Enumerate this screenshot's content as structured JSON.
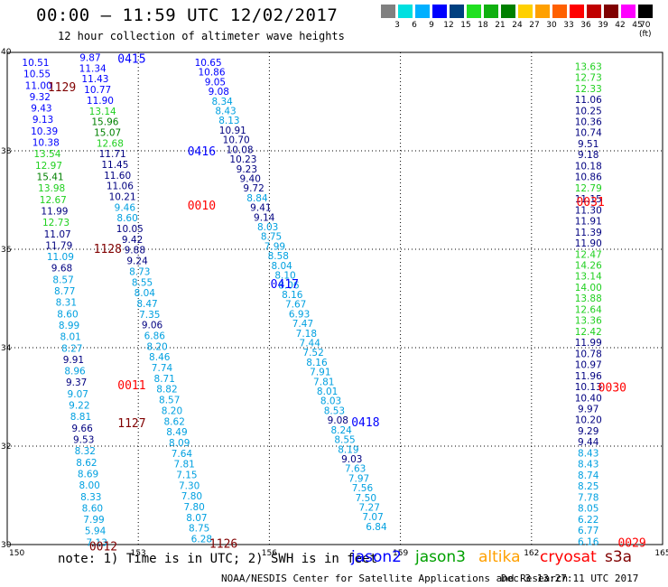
{
  "header": {
    "title": "00:00 – 11:59 UTC 12/02/2017",
    "subtitle": "12 hour collection of altimeter wave heights"
  },
  "scale": {
    "labels": [
      "3",
      "6",
      "9",
      "12",
      "15",
      "18",
      "21",
      "24",
      "27",
      "30",
      "33",
      "36",
      "39",
      "42",
      "45",
      "70 (ft)"
    ],
    "colors": [
      "#808080",
      "#00e0e0",
      "#00b0ff",
      "#0000ff",
      "#004080",
      "#20e020",
      "#10b010",
      "#008000",
      "#ffd000",
      "#ffa000",
      "#ff6000",
      "#ff0000",
      "#c00000",
      "#800000",
      "#ff00ff",
      "#000000"
    ]
  },
  "footer": {
    "note": "note: 1) Time is in UTC; 2) SWH is in feet",
    "satellites": [
      {
        "name": "jason2",
        "color": "#0000ff"
      },
      {
        "name": "jason3",
        "color": "#00a000"
      },
      {
        "name": "altika",
        "color": "#ffa000"
      },
      {
        "name": "cryosat",
        "color": "#ff0000"
      },
      {
        "name": "s3a",
        "color": "#800000"
      }
    ],
    "credit": "NOAA/NESDIS Center for Satellite Applications and Research",
    "stamp": "Dec  3 13:27:11 UTC 2017"
  },
  "chart_data": {
    "type": "scatter",
    "title": "12 hour collection of altimeter wave heights",
    "xlim": [
      150,
      165
    ],
    "ylim": [
      30,
      40
    ],
    "x_ticks": [
      "150",
      "153",
      "156",
      "159",
      "162",
      "165"
    ],
    "y_ticks": [
      "30",
      "32",
      "34",
      "36",
      "38",
      "40"
    ],
    "grid": true,
    "color_key": {
      "jason2": "#0000ff",
      "jason3": "#00a000",
      "altika": "#ffa000",
      "cryosat": "#ff0000",
      "s3a": "#800000"
    },
    "shade_colors": [
      "#00a0e0",
      "#20d020",
      "#008000",
      "#000080",
      "#0000ff"
    ],
    "time_labels": [
      {
        "text": "0415",
        "x": 152.85,
        "y": 39.88,
        "color": "#0000ff"
      },
      {
        "text": "1129",
        "x": 151.25,
        "y": 39.3,
        "color": "#800000"
      },
      {
        "text": "0416",
        "x": 154.45,
        "y": 38.0,
        "color": "#0000ff"
      },
      {
        "text": "0010",
        "x": 154.45,
        "y": 36.9,
        "color": "#ff0000"
      },
      {
        "text": "0031",
        "x": 163.35,
        "y": 36.97,
        "color": "#ff0000"
      },
      {
        "text": "1128",
        "x": 152.3,
        "y": 36.02,
        "color": "#800000"
      },
      {
        "text": "0417",
        "x": 156.35,
        "y": 35.3,
        "color": "#0000ff"
      },
      {
        "text": "0011",
        "x": 152.85,
        "y": 33.25,
        "color": "#ff0000"
      },
      {
        "text": "0030",
        "x": 163.85,
        "y": 33.2,
        "color": "#ff0000"
      },
      {
        "text": "1127",
        "x": 152.85,
        "y": 32.48,
        "color": "#800000"
      },
      {
        "text": "0418",
        "x": 158.2,
        "y": 32.5,
        "color": "#0000ff"
      },
      {
        "text": "0012",
        "x": 152.2,
        "y": 29.97,
        "color": "#800000"
      },
      {
        "text": "1126",
        "x": 154.95,
        "y": 30.03,
        "color": "#800000"
      },
      {
        "text": "0029",
        "x": 164.3,
        "y": 30.05,
        "color": "#ff0000"
      }
    ],
    "tracks": [
      {
        "x0": 150.65,
        "y0": 39.78,
        "x1": 152.05,
        "y1": 30.03,
        "values": [
          {
            "v": "10.51",
            "s": 4
          },
          {
            "v": "10.55",
            "s": 4
          },
          {
            "v": "11.00",
            "s": 4
          },
          {
            "v": "9.32",
            "s": 4
          },
          {
            "v": "9.43",
            "s": 4
          },
          {
            "v": "9.13",
            "s": 4
          },
          {
            "v": "10.39",
            "s": 4
          },
          {
            "v": "10.38",
            "s": 4
          },
          {
            "v": "13.54",
            "s": 1
          },
          {
            "v": "12.97",
            "s": 1
          },
          {
            "v": "15.41",
            "s": 2
          },
          {
            "v": "13.98",
            "s": 1
          },
          {
            "v": "12.67",
            "s": 1
          },
          {
            "v": "11.99",
            "s": 3
          },
          {
            "v": "12.73",
            "s": 1
          },
          {
            "v": "11.07",
            "s": 3
          },
          {
            "v": "11.79",
            "s": 3
          },
          {
            "v": "11.09",
            "s": 0
          },
          {
            "v": "9.68",
            "s": 3
          },
          {
            "v": "8.57",
            "s": 0
          },
          {
            "v": "8.77",
            "s": 0
          },
          {
            "v": "8.31",
            "s": 0
          },
          {
            "v": "8.60",
            "s": 0
          },
          {
            "v": "8.99",
            "s": 0
          },
          {
            "v": "8.01",
            "s": 0
          },
          {
            "v": "8.27",
            "s": 0
          },
          {
            "v": "9.91",
            "s": 3
          },
          {
            "v": "8.96",
            "s": 0
          },
          {
            "v": "9.37",
            "s": 3
          },
          {
            "v": "9.07",
            "s": 0
          },
          {
            "v": "9.22",
            "s": 0
          },
          {
            "v": "8.81",
            "s": 0
          },
          {
            "v": "9.66",
            "s": 3
          },
          {
            "v": "9.53",
            "s": 3
          },
          {
            "v": "8.32",
            "s": 0
          },
          {
            "v": "8.62",
            "s": 0
          },
          {
            "v": "8.69",
            "s": 0
          },
          {
            "v": "8.00",
            "s": 0
          },
          {
            "v": "8.33",
            "s": 0
          },
          {
            "v": "8.60",
            "s": 0
          },
          {
            "v": "7.99",
            "s": 0
          },
          {
            "v": "5.94",
            "s": 0
          },
          {
            "v": "7.13",
            "s": 0
          }
        ]
      },
      {
        "x0": 151.9,
        "y0": 39.88,
        "x1": 154.45,
        "y1": 30.1,
        "values": [
          {
            "v": "9.87",
            "s": 4
          },
          {
            "v": "11.34",
            "s": 4
          },
          {
            "v": "11.43",
            "s": 4
          },
          {
            "v": "10.77",
            "s": 4
          },
          {
            "v": "11.90",
            "s": 4
          },
          {
            "v": "13.14",
            "s": 1
          },
          {
            "v": "15.96",
            "s": 2
          },
          {
            "v": "15.07",
            "s": 2
          },
          {
            "v": "12.68",
            "s": 1
          },
          {
            "v": "11.71",
            "s": 3
          },
          {
            "v": "11.45",
            "s": 3
          },
          {
            "v": "11.60",
            "s": 3
          },
          {
            "v": "11.06",
            "s": 3
          },
          {
            "v": "10.21",
            "s": 3
          },
          {
            "v": "9.46",
            "s": 0
          },
          {
            "v": "8.60",
            "s": 0
          },
          {
            "v": "10.05",
            "s": 3
          },
          {
            "v": "9.42",
            "s": 3
          },
          {
            "v": "9.88",
            "s": 3
          },
          {
            "v": "9.24",
            "s": 3
          },
          {
            "v": "8.73",
            "s": 0
          },
          {
            "v": "8.55",
            "s": 0
          },
          {
            "v": "8.04",
            "s": 0
          },
          {
            "v": "8.47",
            "s": 0
          },
          {
            "v": "7.35",
            "s": 0
          },
          {
            "v": "9.06",
            "s": 3
          },
          {
            "v": "6.86",
            "s": 0
          },
          {
            "v": "8.20",
            "s": 0
          },
          {
            "v": "8.46",
            "s": 0
          },
          {
            "v": "7.74",
            "s": 0
          },
          {
            "v": "8.71",
            "s": 0
          },
          {
            "v": "8.82",
            "s": 0
          },
          {
            "v": "8.57",
            "s": 0
          },
          {
            "v": "8.20",
            "s": 0
          },
          {
            "v": "8.62",
            "s": 0
          },
          {
            "v": "8.49",
            "s": 0
          },
          {
            "v": "8.09",
            "s": 0
          },
          {
            "v": "7.64",
            "s": 0
          },
          {
            "v": "7.81",
            "s": 0
          },
          {
            "v": "7.15",
            "s": 0
          },
          {
            "v": "7.30",
            "s": 0
          },
          {
            "v": "7.80",
            "s": 0
          },
          {
            "v": "7.80",
            "s": 0
          },
          {
            "v": "8.07",
            "s": 0
          },
          {
            "v": "8.75",
            "s": 0
          },
          {
            "v": "6.28",
            "s": 0
          }
        ]
      },
      {
        "x0": 154.6,
        "y0": 39.78,
        "x1": 158.45,
        "y1": 30.35,
        "values": [
          {
            "v": "10.65",
            "s": 4
          },
          {
            "v": "10.86",
            "s": 4
          },
          {
            "v": "9.05",
            "s": 4
          },
          {
            "v": "9.08",
            "s": 4
          },
          {
            "v": "8.34",
            "s": 0
          },
          {
            "v": "8.43",
            "s": 0
          },
          {
            "v": "8.13",
            "s": 0
          },
          {
            "v": "10.91",
            "s": 3
          },
          {
            "v": "10.70",
            "s": 3
          },
          {
            "v": "10.08",
            "s": 3
          },
          {
            "v": "10.23",
            "s": 3
          },
          {
            "v": "9.23",
            "s": 3
          },
          {
            "v": "9.40",
            "s": 3
          },
          {
            "v": "9.72",
            "s": 3
          },
          {
            "v": "8.84",
            "s": 0
          },
          {
            "v": "9.41",
            "s": 3
          },
          {
            "v": "9.14",
            "s": 3
          },
          {
            "v": "8.03",
            "s": 0
          },
          {
            "v": "8.75",
            "s": 0
          },
          {
            "v": "7.99",
            "s": 0
          },
          {
            "v": "8.58",
            "s": 0
          },
          {
            "v": "8.04",
            "s": 0
          },
          {
            "v": "8.10",
            "s": 0
          },
          {
            "v": "8.06",
            "s": 0
          },
          {
            "v": "8.16",
            "s": 0
          },
          {
            "v": "7.67",
            "s": 0
          },
          {
            "v": "6.93",
            "s": 0
          },
          {
            "v": "7.47",
            "s": 0
          },
          {
            "v": "7.18",
            "s": 0
          },
          {
            "v": "7.44",
            "s": 0
          },
          {
            "v": "7.52",
            "s": 0
          },
          {
            "v": "8.16",
            "s": 0
          },
          {
            "v": "7.91",
            "s": 0
          },
          {
            "v": "7.81",
            "s": 0
          },
          {
            "v": "8.01",
            "s": 0
          },
          {
            "v": "8.03",
            "s": 0
          },
          {
            "v": "8.53",
            "s": 0
          },
          {
            "v": "9.08",
            "s": 3
          },
          {
            "v": "8.24",
            "s": 0
          },
          {
            "v": "8.55",
            "s": 0
          },
          {
            "v": "8.19",
            "s": 0
          },
          {
            "v": "9.03",
            "s": 3
          },
          {
            "v": "7.63",
            "s": 0
          },
          {
            "v": "7.97",
            "s": 0
          },
          {
            "v": "7.56",
            "s": 0
          },
          {
            "v": "7.50",
            "s": 0
          },
          {
            "v": "7.27",
            "s": 0
          },
          {
            "v": "7.07",
            "s": 0
          },
          {
            "v": "6.84",
            "s": 0
          }
        ]
      },
      {
        "x0": 163.3,
        "y0": 39.7,
        "x1": 163.3,
        "y1": 30.05,
        "values": [
          {
            "v": "13.63",
            "s": 1
          },
          {
            "v": "12.73",
            "s": 1
          },
          {
            "v": "12.33",
            "s": 1
          },
          {
            "v": "11.06",
            "s": 3
          },
          {
            "v": "10.25",
            "s": 3
          },
          {
            "v": "10.36",
            "s": 3
          },
          {
            "v": "10.74",
            "s": 3
          },
          {
            "v": "9.51",
            "s": 3
          },
          {
            "v": "9.18",
            "s": 3
          },
          {
            "v": "10.18",
            "s": 3
          },
          {
            "v": "10.86",
            "s": 3
          },
          {
            "v": "12.79",
            "s": 1
          },
          {
            "v": "11.15",
            "s": 3
          },
          {
            "v": "11.30",
            "s": 3
          },
          {
            "v": "11.91",
            "s": 3
          },
          {
            "v": "11.39",
            "s": 3
          },
          {
            "v": "11.90",
            "s": 3
          },
          {
            "v": "12.47",
            "s": 1
          },
          {
            "v": "14.26",
            "s": 1
          },
          {
            "v": "13.14",
            "s": 1
          },
          {
            "v": "14.00",
            "s": 1
          },
          {
            "v": "13.88",
            "s": 1
          },
          {
            "v": "12.64",
            "s": 1
          },
          {
            "v": "13.36",
            "s": 1
          },
          {
            "v": "12.42",
            "s": 1
          },
          {
            "v": "11.99",
            "s": 3
          },
          {
            "v": "10.78",
            "s": 3
          },
          {
            "v": "10.97",
            "s": 3
          },
          {
            "v": "11.96",
            "s": 3
          },
          {
            "v": "10.13",
            "s": 3
          },
          {
            "v": "10.40",
            "s": 3
          },
          {
            "v": "9.97",
            "s": 3
          },
          {
            "v": "10.20",
            "s": 3
          },
          {
            "v": "9.29",
            "s": 3
          },
          {
            "v": "9.44",
            "s": 3
          },
          {
            "v": "8.43",
            "s": 0
          },
          {
            "v": "8.43",
            "s": 0
          },
          {
            "v": "8.74",
            "s": 0
          },
          {
            "v": "8.25",
            "s": 0
          },
          {
            "v": "7.78",
            "s": 0
          },
          {
            "v": "8.05",
            "s": 0
          },
          {
            "v": "6.22",
            "s": 0
          },
          {
            "v": "6.77",
            "s": 0
          },
          {
            "v": "6.16",
            "s": 0
          }
        ]
      }
    ]
  }
}
